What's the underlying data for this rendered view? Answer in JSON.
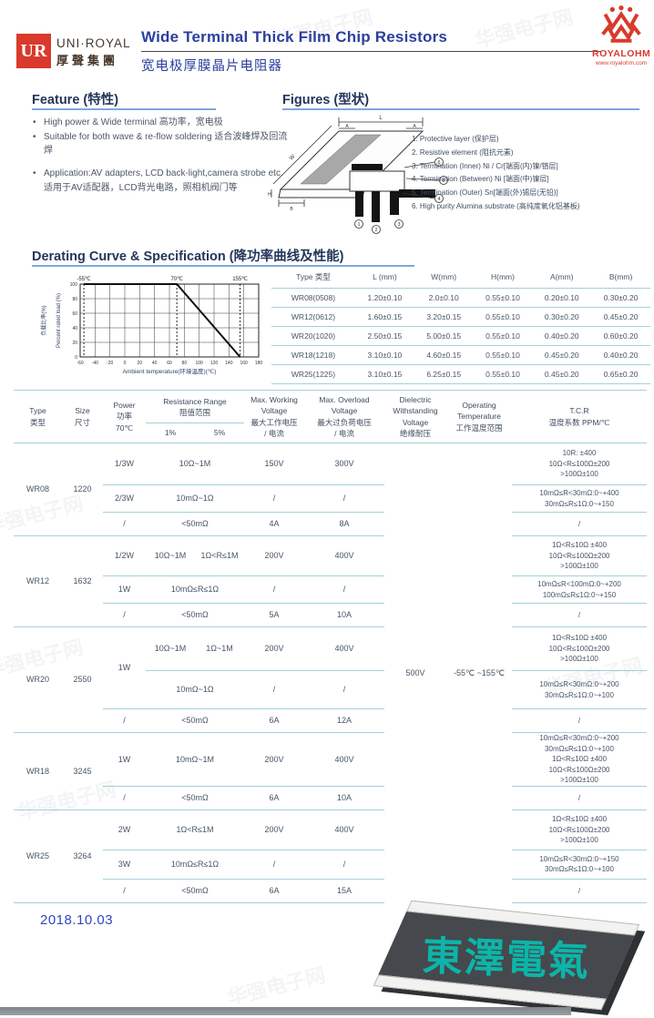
{
  "colors": {
    "accent_blue": "#2b3f9e",
    "heading_navy": "#24365c",
    "underline_blue": "#7fa8dc",
    "table_line": "#a6d0d8",
    "brand_red": "#d93a2b",
    "stamp_teal": "#0cb5a8",
    "date_blue": "#2e46c0",
    "text": "#475569"
  },
  "header": {
    "logo_text": "UR",
    "brand": "UNI·ROYAL",
    "brand_cn": "厚聲集團",
    "title": "Wide Terminal Thick Film Chip Resistors",
    "title_cn": "宽电极厚膜晶片电阻器",
    "royalohm": "ROYALOHM",
    "royalohm_url": "www.royalohm.com"
  },
  "watermark": {
    "text": "华强电子网"
  },
  "feature": {
    "heading": "Feature (特性)",
    "items": [
      {
        "en": "High power & Wide terminal",
        "cn": "高功率，宽电极"
      },
      {
        "en": "Suitable for both wave & re-flow soldering",
        "cn": "适合波峰焊及回流焊"
      },
      {
        "en": "Application:AV adapters, LCD back-light,camera strobe etc.",
        "cn": "适用于AV适配器，LCD背光电路，照相机阀门等"
      }
    ]
  },
  "figures": {
    "heading": "Figures (型状)",
    "dim_labels": [
      "L",
      "W",
      "H",
      "A",
      "B"
    ],
    "callout_numbers": [
      "1",
      "2",
      "3",
      "4",
      "5",
      "6"
    ],
    "notes": [
      "1. Protective layer (保护层)",
      "2. Resistive element (阻抗元素)",
      "3. Termination (Inner) Ni / Cr[端面(内)镍/铬层]",
      "4. Termination (Between) Ni [端面(中)镍层]",
      "5. Termination (Outer) Sn[端面(外)锡层(无铅)]",
      "6. High purity Alumina substrate (高纯度氧化铝基板)"
    ]
  },
  "derating": {
    "heading": "Derating Curve & Specification (降功率曲线及性能)"
  },
  "chart_data": {
    "type": "line",
    "title": "Derating Curve",
    "xlabel": "Ambient temperature(环境温度)(℃)",
    "ylabel": "Percent rated load (%)",
    "ylabel_cn": "负载比率(%)",
    "xlim": [
      -60,
      180
    ],
    "ylim": [
      0,
      100
    ],
    "xticks": [
      -60,
      -40,
      -20,
      0,
      20,
      40,
      60,
      80,
      100,
      120,
      140,
      160,
      180
    ],
    "yticks": [
      0,
      20,
      40,
      60,
      80,
      100
    ],
    "grid": true,
    "legend_position": "none",
    "reference_lines": [
      {
        "x": -55,
        "label": "-55℃"
      },
      {
        "x": 70,
        "label": "70℃"
      },
      {
        "x": 155,
        "label": "155℃"
      }
    ],
    "series": [
      {
        "name": "Percent rated load",
        "points": [
          [
            -55,
            100
          ],
          [
            70,
            100
          ],
          [
            155,
            0
          ]
        ]
      }
    ]
  },
  "dims_table": {
    "headers": [
      "Type 类型",
      "L (mm)",
      "W(mm)",
      "H(mm)",
      "A(mm)",
      "B(mm)"
    ],
    "rows": [
      [
        "WR08(0508)",
        "1.20±0.10",
        "2.0±0.10",
        "0.55±0.10",
        "0.20±0.10",
        "0.30±0.20"
      ],
      [
        "WR12(0612)",
        "1.60±0.15",
        "3.20±0.15",
        "0.55±0.10",
        "0.30±0.20",
        "0.45±0.20"
      ],
      [
        "WR20(1020)",
        "2.50±0.15",
        "5.00±0.15",
        "0.55±0.10",
        "0.40±0.20",
        "0.60±0.20"
      ],
      [
        "WR18(1218)",
        "3.10±0.10",
        "4.60±0.15",
        "0.55±0.10",
        "0.45±0.20",
        "0.40±0.20"
      ],
      [
        "WR25(1225)",
        "3.10±0.15",
        "6.25±0.15",
        "0.55±0.10",
        "0.45±0.20",
        "0.65±0.20"
      ]
    ]
  },
  "spec_table": {
    "headers": {
      "type": {
        "en": "Type",
        "cn": "类型"
      },
      "size": {
        "en": "Size",
        "cn": "尺寸"
      },
      "power": {
        "en": "Power",
        "cn": "功率",
        "sub": "70℃"
      },
      "range": {
        "en": "Resistance Range",
        "cn": "阻值范围",
        "tol1": "1%",
        "tol5": "5%"
      },
      "working": {
        "en": "Max. Working",
        "en2": "Voltage",
        "cn": "最大工作电压",
        "cn2": "/ 电流"
      },
      "overload": {
        "en": "Max. Overload",
        "en2": "Voltage",
        "cn": "最大过负荷电压",
        "cn2": "/ 电流"
      },
      "dielectric": {
        "en": "Dielectric",
        "en2": "Withstanding",
        "en3": "Voltage",
        "cn": "绝缘耐压"
      },
      "temp": {
        "en": "Operating",
        "en2": "Temperature",
        "cn": "工作温度范围"
      },
      "tcr": {
        "en": "T.C.R",
        "cn": "温度系数 PPM/℃"
      }
    },
    "dielectric_value": "500V",
    "temp_value": "-55℃ ~155℃",
    "groups": [
      {
        "type": "WR08",
        "size": "1220",
        "rows": [
          {
            "power": "1/3W",
            "range": "10Ω~1M",
            "working": "150V",
            "overload": "300V",
            "tcr": [
              "10R: ±400",
              "10Ω<R≤100Ω±200",
              ">100Ω±100"
            ]
          },
          {
            "power": "2/3W",
            "range": "10mΩ~1Ω",
            "working": "/",
            "overload": "/",
            "tcr": [
              "10mΩ≤R<30mΩ:0~+400",
              "30mΩ≤R≤1Ω:0~+150"
            ]
          },
          {
            "power": "/",
            "range": "<50mΩ",
            "working": "4A",
            "overload": "8A",
            "tcr": [
              "/"
            ]
          }
        ]
      },
      {
        "type": "WR12",
        "size": "1632",
        "rows": [
          {
            "power": "1/2W",
            "range": "10Ω~1M",
            "range5": "1Ω<R≤1M",
            "working": "200V",
            "overload": "400V",
            "tcr": [
              "1Ω<R≤10Ω ±400",
              "10Ω<R≤100Ω±200",
              ">100Ω±100"
            ]
          },
          {
            "power": "1W",
            "range": "10mΩ≤R≤1Ω",
            "working": "/",
            "overload": "/",
            "tcr": [
              "10mΩ≤R<100mΩ:0~+200",
              "100mΩ≤R≤1Ω:0~+150"
            ]
          },
          {
            "power": "/",
            "range": "<50mΩ",
            "working": "5A",
            "overload": "10A",
            "tcr": [
              "/"
            ]
          }
        ]
      },
      {
        "type": "WR20",
        "size": "2550",
        "rows": [
          {
            "power": "1W",
            "power_span": 2,
            "range": "10Ω~1M",
            "range5": "1Ω~1M",
            "working": "200V",
            "overload": "400V",
            "tcr": [
              "1Ω<R≤10Ω ±400",
              "10Ω<R≤100Ω±200",
              ">100Ω±100"
            ]
          },
          {
            "range": "10mΩ~1Ω",
            "working": "/",
            "overload": "/",
            "tcr": [
              "10mΩ≤R<30mΩ:0~+200",
              "30mΩ≤R≤1Ω:0~+100"
            ]
          },
          {
            "power": "/",
            "range": "<50mΩ",
            "working": "6A",
            "overload": "12A",
            "tcr": [
              "/"
            ]
          }
        ]
      },
      {
        "type": "WR18",
        "size": "3245",
        "rows": [
          {
            "power": "1W",
            "range": "10mΩ~1M",
            "working": "200V",
            "overload": "400V",
            "tcr": [
              "10mΩ≤R<30mΩ:0~+200",
              "30mΩ≤R≤1Ω:0~+100",
              "1Ω<R≤10Ω ±400",
              "10Ω<R≤100Ω±200",
              ">100Ω±100"
            ]
          },
          {
            "power": "/",
            "range": "<50mΩ",
            "working": "6A",
            "overload": "10A",
            "tcr": [
              "/"
            ]
          }
        ]
      },
      {
        "type": "WR25",
        "size": "3264",
        "rows": [
          {
            "power": "2W",
            "range": "1Ω<R≤1M",
            "working": "200V",
            "overload": "400V",
            "tcr": [
              "1Ω<R≤10Ω ±400",
              "10Ω<R≤100Ω±200",
              ">100Ω±100"
            ]
          },
          {
            "power": "3W",
            "range": "10mΩ≤R≤1Ω",
            "working": "/",
            "overload": "/",
            "tcr": [
              "10mΩ≤R<30mΩ:0~+150",
              "30mΩ≤R≤1Ω:0~+100"
            ]
          },
          {
            "power": "/",
            "range": "<50mΩ",
            "working": "6A",
            "overload": "15A",
            "tcr": [
              "/"
            ]
          }
        ]
      }
    ]
  },
  "footer": {
    "date": "2018.10.03",
    "stamp_text": "東澤電氣"
  }
}
